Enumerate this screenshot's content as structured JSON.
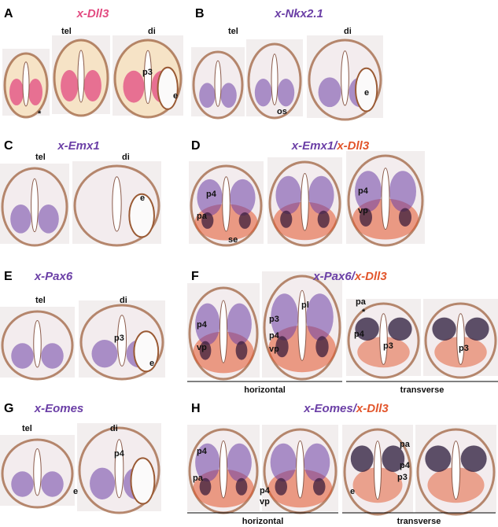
{
  "panels": [
    {
      "letter": "A",
      "title": [
        "x-Dll3"
      ],
      "labels": [
        "tel",
        "di",
        "p3",
        "e",
        "*"
      ]
    },
    {
      "letter": "B",
      "title": [
        "x-Nkx2.1"
      ],
      "labels": [
        "tel",
        "di",
        "os",
        "e"
      ]
    },
    {
      "letter": "C",
      "title": [
        "x-Emx1"
      ],
      "labels": [
        "tel",
        "di",
        "e"
      ]
    },
    {
      "letter": "D",
      "title": [
        "x-Emx1/",
        "x-Dll3"
      ],
      "labels": [
        "p4",
        "pa",
        "se",
        "p4",
        "vp"
      ]
    },
    {
      "letter": "E",
      "title": [
        "x-Pax6"
      ],
      "labels": [
        "tel",
        "di",
        "p3",
        "e"
      ]
    },
    {
      "letter": "F",
      "title": [
        "x-Pax6/",
        "x-Dll3"
      ],
      "labels": [
        "p4",
        "vp",
        "p3",
        "pl",
        "p4",
        "vp",
        "pa",
        "*",
        "p4",
        "p3",
        "p3"
      ],
      "sections": [
        "horizontal",
        "transverse"
      ]
    },
    {
      "letter": "G",
      "title": [
        "x-Eomes"
      ],
      "labels": [
        "tel",
        "di",
        "p4",
        "e"
      ]
    },
    {
      "letter": "H",
      "title": [
        "x-Eomes/",
        "x-Dll3"
      ],
      "labels": [
        "p4",
        "pa",
        "p4",
        "vp",
        "pa",
        "p4",
        "p3",
        "e"
      ],
      "sections": [
        "horizontal",
        "transverse"
      ]
    }
  ]
}
